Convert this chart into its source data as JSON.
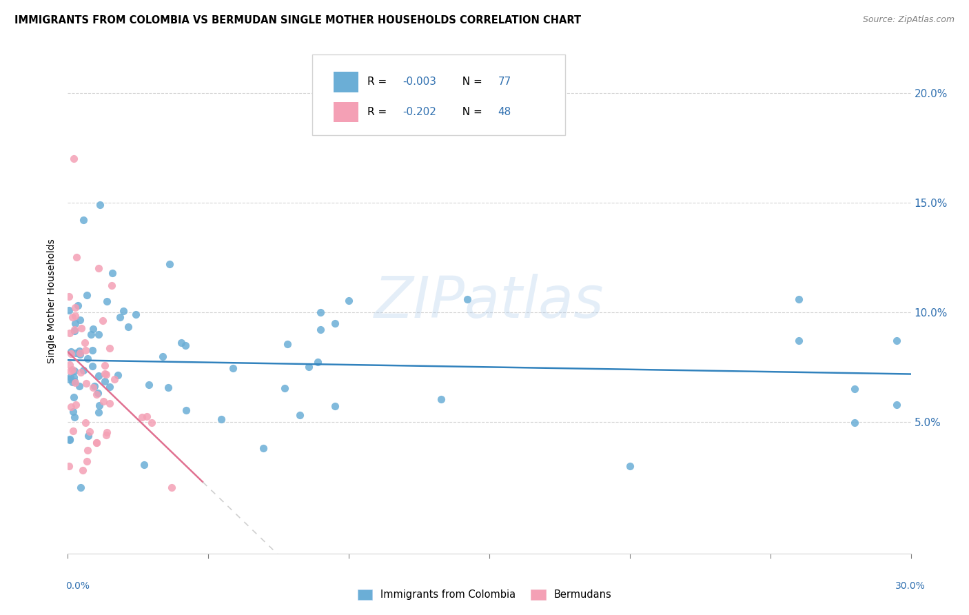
{
  "title": "IMMIGRANTS FROM COLOMBIA VS BERMUDAN SINGLE MOTHER HOUSEHOLDS CORRELATION CHART",
  "source": "Source: ZipAtlas.com",
  "ylabel": "Single Mother Households",
  "legend_bottom_1": "Immigrants from Colombia",
  "legend_bottom_2": "Bermudans",
  "watermark": "ZIPatlas",
  "blue_color": "#6baed6",
  "pink_color": "#f4a0b5",
  "blue_line_color": "#3182bd",
  "pink_line_color": "#e07090",
  "pink_dash_color": "#d0d0d0",
  "xmin": 0.0,
  "xmax": 0.3,
  "ymin": -0.01,
  "ymax": 0.22,
  "ytick_vals": [
    0.05,
    0.1,
    0.15,
    0.2
  ],
  "ytick_labels": [
    "5.0%",
    "10.0%",
    "15.0%",
    "20.0%"
  ],
  "xtick_vals": [
    0.0,
    0.05,
    0.1,
    0.15,
    0.2,
    0.25,
    0.3
  ],
  "r_colombia": -0.003,
  "n_colombia": 77,
  "r_bermuda": -0.202,
  "n_bermuda": 48
}
